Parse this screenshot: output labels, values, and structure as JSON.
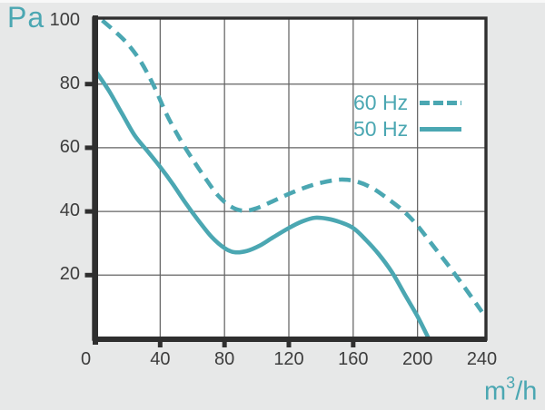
{
  "page": {
    "background_color": "#e7e8e8",
    "plot_background_color": "#ffffff",
    "accent_color": "#4BA7B2",
    "axis_color": "#2f2f2f",
    "grid_color": "#636363",
    "tick_label_color": "#3d3d3d"
  },
  "labels": {
    "y_unit": "Pa",
    "x_unit_pre": "m",
    "x_unit_sup": "3",
    "x_unit_post": "/h"
  },
  "legend": {
    "entries": [
      {
        "label": "60 Hz",
        "style": "dashed"
      },
      {
        "label": "50 Hz",
        "style": "solid"
      }
    ]
  },
  "chart_data": {
    "type": "line",
    "title": "",
    "xlabel": "m3/h",
    "ylabel": "Pa",
    "xlim": [
      0,
      240
    ],
    "ylim": [
      0,
      100
    ],
    "x_ticks": [
      0,
      40,
      80,
      120,
      160,
      200,
      240
    ],
    "y_ticks": [
      100,
      80,
      60,
      40,
      20
    ],
    "x_tick_marks": [
      40,
      80,
      120,
      160
    ],
    "y_tick_marks": [
      80,
      60,
      40,
      20
    ],
    "grid": true,
    "legend_position": "inside-top-right",
    "accent_color": "#4BA7B2",
    "series": [
      {
        "name": "60 Hz",
        "line_style": "dashed",
        "color": "#4BA7B2",
        "points": [
          [
            4,
            100
          ],
          [
            12,
            96.5
          ],
          [
            20,
            92.5
          ],
          [
            28,
            87
          ],
          [
            36,
            79.5
          ],
          [
            44,
            70.5
          ],
          [
            52,
            63
          ],
          [
            60,
            56.5
          ],
          [
            68,
            50.5
          ],
          [
            76,
            45
          ],
          [
            84,
            41.5
          ],
          [
            92,
            40.2
          ],
          [
            100,
            41
          ],
          [
            110,
            43.2
          ],
          [
            120,
            45.5
          ],
          [
            130,
            47.5
          ],
          [
            140,
            49
          ],
          [
            152,
            50
          ],
          [
            162,
            49.4
          ],
          [
            172,
            47.3
          ],
          [
            182,
            43.8
          ],
          [
            192,
            39.8
          ],
          [
            200,
            35.5
          ],
          [
            210,
            29
          ],
          [
            220,
            22.5
          ],
          [
            228,
            17
          ],
          [
            234,
            12.8
          ],
          [
            240,
            8.5
          ]
        ]
      },
      {
        "name": "50 Hz",
        "line_style": "solid",
        "color": "#4BA7B2",
        "points": [
          [
            0,
            84
          ],
          [
            8,
            78
          ],
          [
            16,
            71
          ],
          [
            24,
            64
          ],
          [
            32,
            59
          ],
          [
            40,
            54
          ],
          [
            48,
            48.5
          ],
          [
            56,
            42.5
          ],
          [
            64,
            37
          ],
          [
            72,
            32
          ],
          [
            80,
            28.5
          ],
          [
            86,
            27.2
          ],
          [
            94,
            27.6
          ],
          [
            102,
            29.3
          ],
          [
            110,
            31.8
          ],
          [
            120,
            34.8
          ],
          [
            128,
            36.8
          ],
          [
            136,
            38
          ],
          [
            144,
            37.7
          ],
          [
            152,
            36.6
          ],
          [
            160,
            34.8
          ],
          [
            168,
            31
          ],
          [
            176,
            26.5
          ],
          [
            184,
            21
          ],
          [
            192,
            14
          ],
          [
            200,
            7
          ],
          [
            207,
            0
          ]
        ]
      }
    ]
  }
}
